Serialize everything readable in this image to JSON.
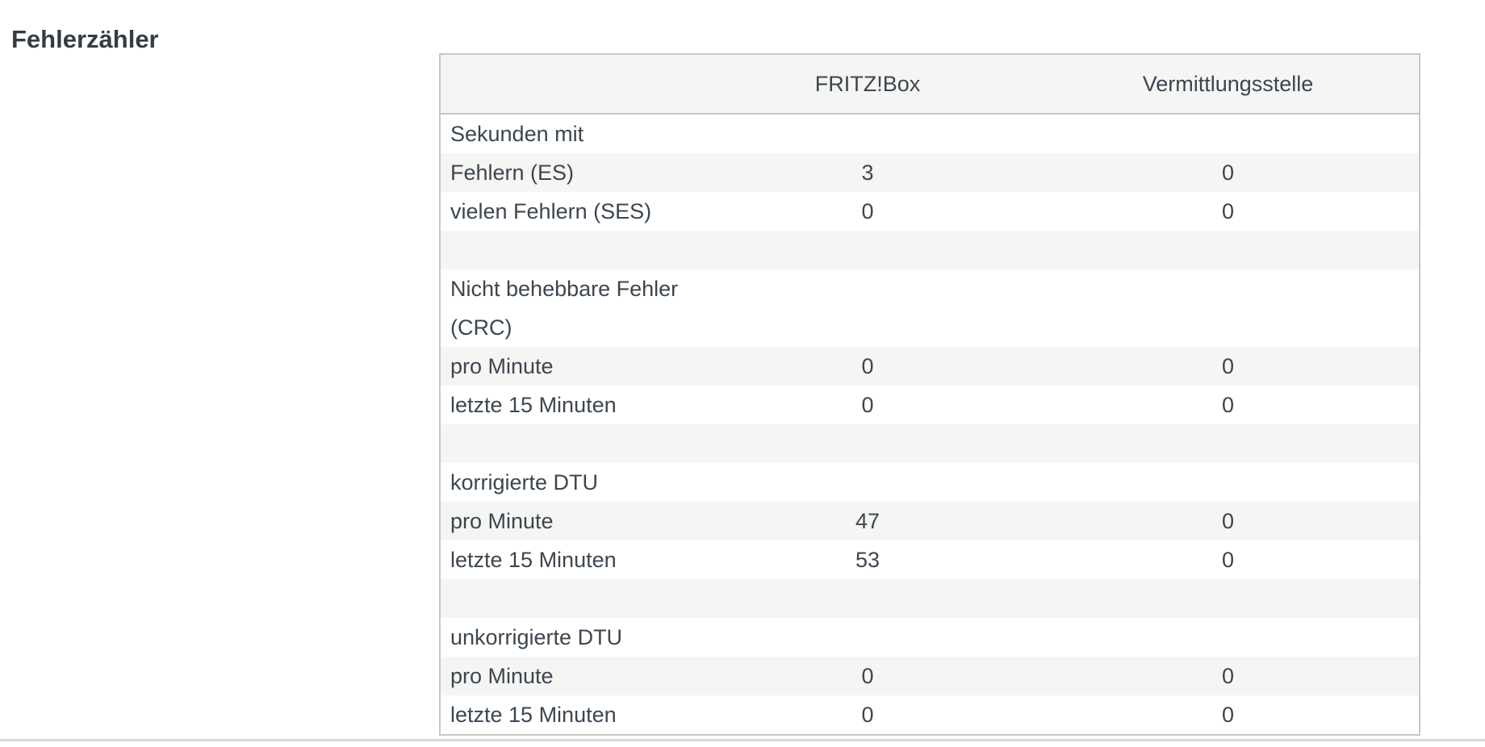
{
  "page": {
    "title": "Fehlerzähler"
  },
  "table": {
    "columns": {
      "label": "",
      "fritzbox": "FRITZ!Box",
      "vermittlungsstelle": "Vermittlungsstelle"
    },
    "rows": [
      {
        "type": "group",
        "label": "Sekunden mit",
        "fritzbox": "",
        "vermittlungsstelle": ""
      },
      {
        "type": "data",
        "label": "Fehlern (ES)",
        "fritzbox": "3",
        "vermittlungsstelle": "0"
      },
      {
        "type": "data",
        "label": "vielen Fehlern (SES)",
        "fritzbox": "0",
        "vermittlungsstelle": "0"
      },
      {
        "type": "spacer",
        "label": "",
        "fritzbox": "",
        "vermittlungsstelle": ""
      },
      {
        "type": "group",
        "label": "Nicht behebbare Fehler\n(CRC)",
        "fritzbox": "",
        "vermittlungsstelle": ""
      },
      {
        "type": "data",
        "label": "pro Minute",
        "fritzbox": "0",
        "vermittlungsstelle": "0"
      },
      {
        "type": "data",
        "label": "letzte 15 Minuten",
        "fritzbox": "0",
        "vermittlungsstelle": "0"
      },
      {
        "type": "spacer",
        "label": "",
        "fritzbox": "",
        "vermittlungsstelle": ""
      },
      {
        "type": "group",
        "label": "korrigierte DTU",
        "fritzbox": "",
        "vermittlungsstelle": ""
      },
      {
        "type": "data",
        "label": "pro Minute",
        "fritzbox": "47",
        "vermittlungsstelle": "0"
      },
      {
        "type": "data",
        "label": "letzte 15 Minuten",
        "fritzbox": "53",
        "vermittlungsstelle": "0"
      },
      {
        "type": "spacer",
        "label": "",
        "fritzbox": "",
        "vermittlungsstelle": ""
      },
      {
        "type": "group",
        "label": "unkorrigierte DTU",
        "fritzbox": "",
        "vermittlungsstelle": ""
      },
      {
        "type": "data",
        "label": "pro Minute",
        "fritzbox": "0",
        "vermittlungsstelle": "0"
      },
      {
        "type": "data",
        "label": "letzte 15 Minuten",
        "fritzbox": "0",
        "vermittlungsstelle": "0"
      }
    ]
  },
  "colors": {
    "text": "#3c464f",
    "title_text": "#333d46",
    "stripe_background": "#f5f5f4",
    "table_border": "#c8c7bf",
    "footer_divider": "#d8d8d8",
    "page_background": "#ffffff"
  }
}
